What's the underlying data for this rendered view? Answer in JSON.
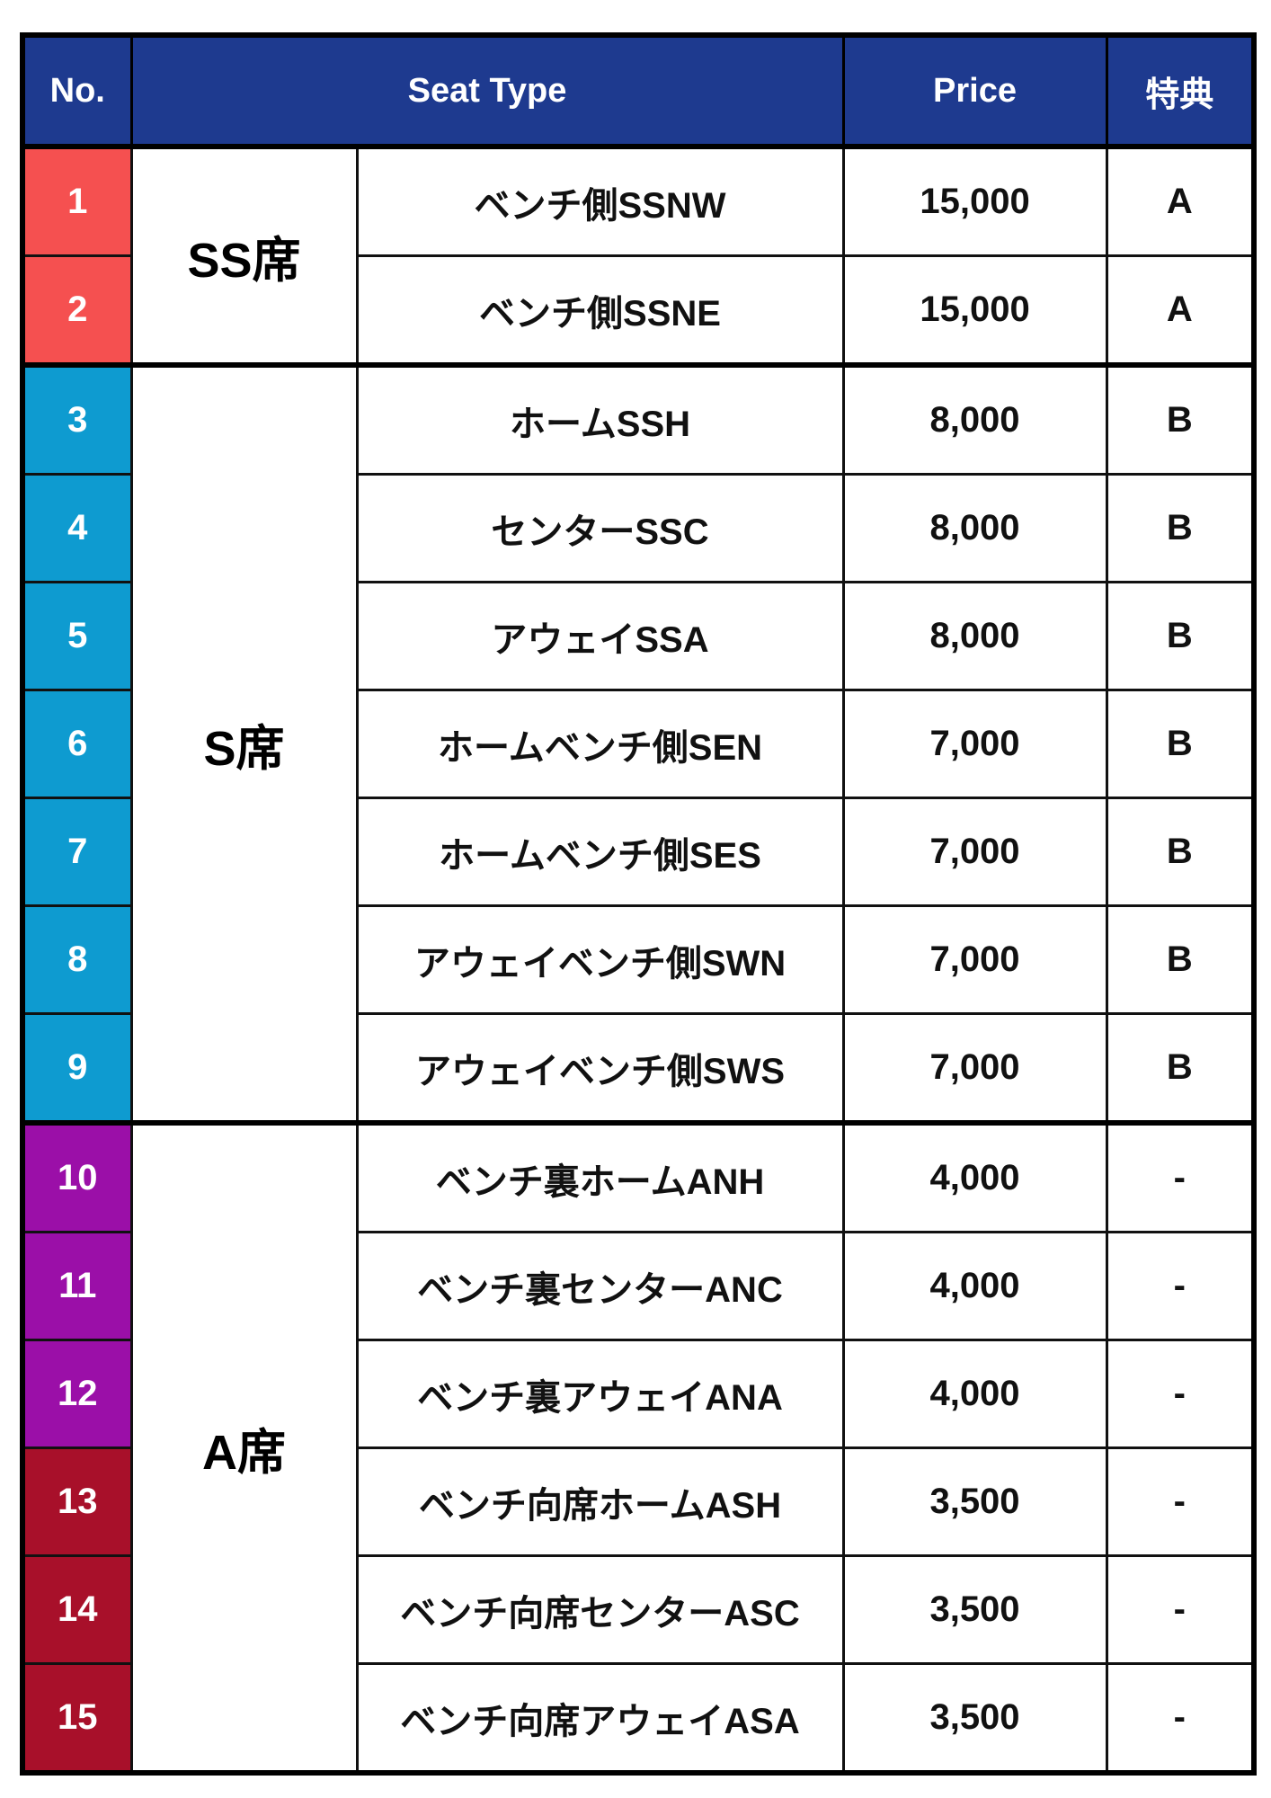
{
  "header": {
    "no": "No.",
    "seat_type": "Seat Type",
    "price": "Price",
    "benefit": "特典"
  },
  "colors": {
    "header": "#1e3a8f",
    "red": "#f55050",
    "blue": "#0e9bd0",
    "purple": "#9b0fa8",
    "crimson": "#a8102a"
  },
  "groups": [
    {
      "label": "SS席",
      "rows": [
        {
          "no": "1",
          "name": "ベンチ側SSNW",
          "price": "15,000",
          "benefit": "A",
          "color": "#f55050"
        },
        {
          "no": "2",
          "name": "ベンチ側SSNE",
          "price": "15,000",
          "benefit": "A",
          "color": "#f55050"
        }
      ]
    },
    {
      "label": "S席",
      "rows": [
        {
          "no": "3",
          "name": "ホームSSH",
          "price": "8,000",
          "benefit": "B",
          "color": "#0e9bd0"
        },
        {
          "no": "4",
          "name": "センターSSC",
          "price": "8,000",
          "benefit": "B",
          "color": "#0e9bd0"
        },
        {
          "no": "5",
          "name": "アウェイSSA",
          "price": "8,000",
          "benefit": "B",
          "color": "#0e9bd0"
        },
        {
          "no": "6",
          "name": "ホームベンチ側SEN",
          "price": "7,000",
          "benefit": "B",
          "color": "#0e9bd0"
        },
        {
          "no": "7",
          "name": "ホームベンチ側SES",
          "price": "7,000",
          "benefit": "B",
          "color": "#0e9bd0"
        },
        {
          "no": "8",
          "name": "アウェイベンチ側SWN",
          "price": "7,000",
          "benefit": "B",
          "color": "#0e9bd0"
        },
        {
          "no": "9",
          "name": "アウェイベンチ側SWS",
          "price": "7,000",
          "benefit": "B",
          "color": "#0e9bd0"
        }
      ]
    },
    {
      "label": "A席",
      "rows": [
        {
          "no": "10",
          "name": "ベンチ裏ホームANH",
          "price": "4,000",
          "benefit": "-",
          "color": "#9b0fa8"
        },
        {
          "no": "11",
          "name": "ベンチ裏センターANC",
          "price": "4,000",
          "benefit": "-",
          "color": "#9b0fa8"
        },
        {
          "no": "12",
          "name": "ベンチ裏アウェイANA",
          "price": "4,000",
          "benefit": "-",
          "color": "#9b0fa8"
        },
        {
          "no": "13",
          "name": "ベンチ向席ホームASH",
          "price": "3,500",
          "benefit": "-",
          "color": "#a8102a"
        },
        {
          "no": "14",
          "name": "ベンチ向席センターASC",
          "price": "3,500",
          "benefit": "-",
          "color": "#a8102a"
        },
        {
          "no": "15",
          "name": "ベンチ向席アウェイASA",
          "price": "3,500",
          "benefit": "-",
          "color": "#a8102a"
        }
      ]
    }
  ]
}
